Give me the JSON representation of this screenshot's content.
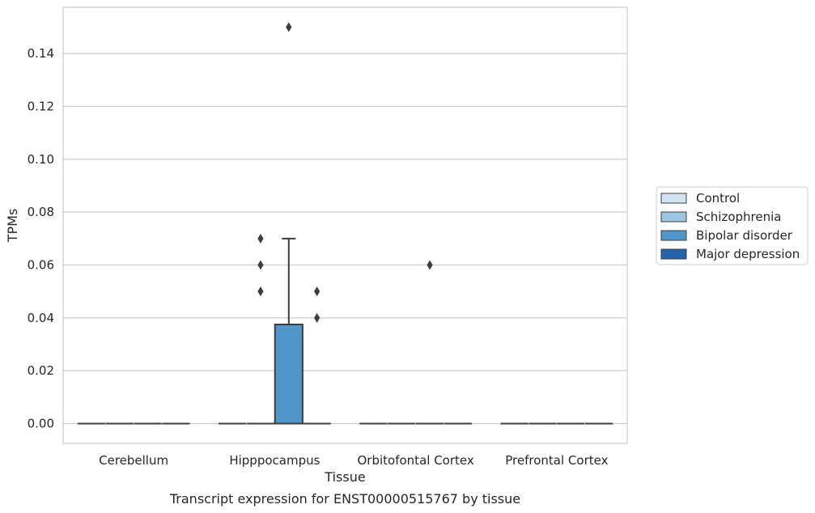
{
  "chart_data": {
    "type": "box",
    "caption": "Transcript expression for ENST00000515767 by tissue",
    "xlabel": "Tissue",
    "ylabel": "TPMs",
    "ylim": [
      -0.0075,
      0.1575
    ],
    "yticks": [
      0.0,
      0.02,
      0.04,
      0.06,
      0.08,
      0.1,
      0.12,
      0.14
    ],
    "ytick_labels": [
      "0.00",
      "0.02",
      "0.04",
      "0.06",
      "0.08",
      "0.10",
      "0.12",
      "0.14"
    ],
    "grid": "horizontal",
    "legend_position": "right",
    "categories": [
      "Cerebellum",
      "Hipppocampus",
      "Orbitofontal Cortex",
      "Prefrontal Cortex"
    ],
    "series": [
      {
        "name": "Control",
        "color": "#d2e3f3",
        "boxes": [
          {
            "q1": 0,
            "median": 0,
            "q3": 0,
            "whisker_low": 0,
            "whisker_high": 0,
            "outliers": []
          },
          {
            "q1": 0,
            "median": 0,
            "q3": 0,
            "whisker_low": 0,
            "whisker_high": 0,
            "outliers": []
          },
          {
            "q1": 0,
            "median": 0,
            "q3": 0,
            "whisker_low": 0,
            "whisker_high": 0,
            "outliers": []
          },
          {
            "q1": 0,
            "median": 0,
            "q3": 0,
            "whisker_low": 0,
            "whisker_high": 0,
            "outliers": []
          }
        ]
      },
      {
        "name": "Schizophrenia",
        "color": "#9ac8e0",
        "boxes": [
          {
            "q1": 0,
            "median": 0,
            "q3": 0,
            "whisker_low": 0,
            "whisker_high": 0,
            "outliers": []
          },
          {
            "q1": 0,
            "median": 0,
            "q3": 0,
            "whisker_low": 0,
            "whisker_high": 0,
            "outliers": [
              0.05,
              0.06,
              0.07
            ]
          },
          {
            "q1": 0,
            "median": 0,
            "q3": 0,
            "whisker_low": 0,
            "whisker_high": 0,
            "outliers": []
          },
          {
            "q1": 0,
            "median": 0,
            "q3": 0,
            "whisker_low": 0,
            "whisker_high": 0,
            "outliers": []
          }
        ]
      },
      {
        "name": "Bipolar disorder",
        "color": "#5096c8",
        "boxes": [
          {
            "q1": 0,
            "median": 0,
            "q3": 0,
            "whisker_low": 0,
            "whisker_high": 0,
            "outliers": []
          },
          {
            "q1": 0,
            "median": 0,
            "q3": 0.0375,
            "whisker_low": 0,
            "whisker_high": 0.07,
            "outliers": [
              0.15
            ]
          },
          {
            "q1": 0,
            "median": 0,
            "q3": 0,
            "whisker_low": 0,
            "whisker_high": 0,
            "outliers": [
              0.06
            ]
          },
          {
            "q1": 0,
            "median": 0,
            "q3": 0,
            "whisker_low": 0,
            "whisker_high": 0,
            "outliers": []
          }
        ]
      },
      {
        "name": "Major depression",
        "color": "#2364aa",
        "boxes": [
          {
            "q1": 0,
            "median": 0,
            "q3": 0,
            "whisker_low": 0,
            "whisker_high": 0,
            "outliers": []
          },
          {
            "q1": 0,
            "median": 0,
            "q3": 0,
            "whisker_low": 0,
            "whisker_high": 0,
            "outliers": [
              0.04,
              0.05
            ]
          },
          {
            "q1": 0,
            "median": 0,
            "q3": 0,
            "whisker_low": 0,
            "whisker_high": 0,
            "outliers": []
          },
          {
            "q1": 0,
            "median": 0,
            "q3": 0,
            "whisker_low": 0,
            "whisker_high": 0,
            "outliers": []
          }
        ]
      }
    ]
  }
}
